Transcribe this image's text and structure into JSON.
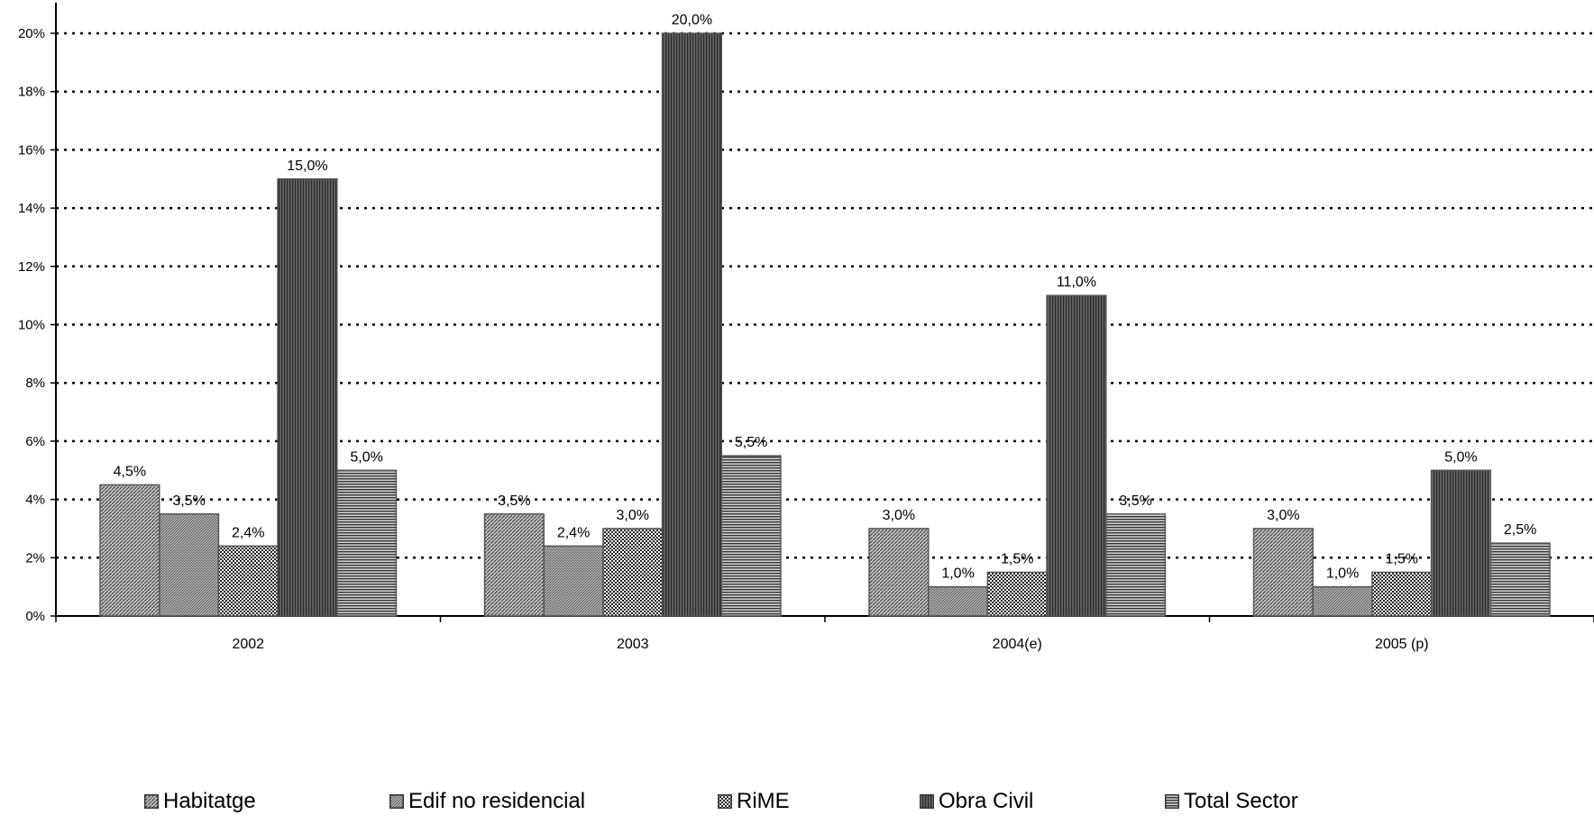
{
  "chart_data": {
    "type": "bar",
    "title": "",
    "xlabel": "",
    "ylabel": "",
    "categories": [
      "2002",
      "2003",
      "2004(e)",
      "2005 (p)"
    ],
    "series": [
      {
        "name": "Habitatge",
        "values": [
          4.5,
          3.5,
          3.0,
          3.0
        ],
        "labels": [
          "4,5%",
          "3,5%",
          "3,0%",
          "3,0%"
        ]
      },
      {
        "name": "Edif no residencial",
        "values": [
          3.5,
          2.4,
          1.0,
          1.0
        ],
        "labels": [
          "3,5%",
          "2,4%",
          "1,0%",
          "1,0%"
        ]
      },
      {
        "name": "RiME",
        "values": [
          2.4,
          3.0,
          1.5,
          1.5
        ],
        "labels": [
          "2,4%",
          "3,0%",
          "1,5%",
          "1,5%"
        ]
      },
      {
        "name": "Obra Civil",
        "values": [
          15.0,
          20.0,
          11.0,
          5.0
        ],
        "labels": [
          "15,0%",
          "20,0%",
          "11,0%",
          "5,0%"
        ]
      },
      {
        "name": "Total Sector",
        "values": [
          5.0,
          5.5,
          3.5,
          2.5
        ],
        "labels": [
          "5,0%",
          "5,5%",
          "3,5%",
          "2,5%"
        ]
      }
    ],
    "ylim": [
      0,
      20
    ],
    "yticks": [
      "0%",
      "2%",
      "4%",
      "6%",
      "8%",
      "10%",
      "12%",
      "14%",
      "16%",
      "18%",
      "20%"
    ],
    "grid": true,
    "grid_style": "dotted",
    "legend_position": "bottom",
    "colors": {
      "bar_fill": "#8a8a8a",
      "bar_edge": "#555555",
      "grid": "#000000"
    },
    "patterns": [
      "diagonal-fine",
      "diagonal-dense",
      "checker",
      "vertical-dense",
      "horizontal"
    ]
  }
}
